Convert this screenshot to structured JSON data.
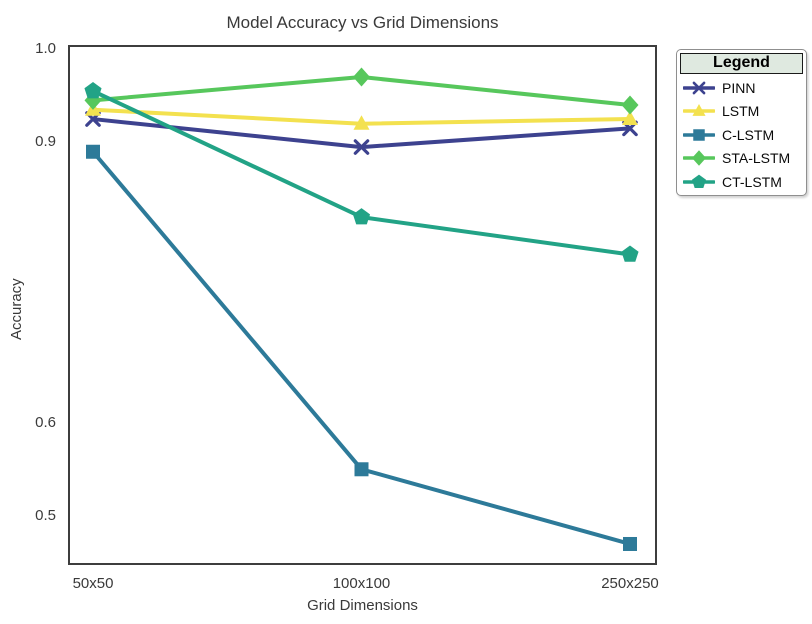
{
  "chart_data": {
    "type": "line",
    "title": "Model Accuracy vs Grid Dimensions",
    "xlabel": "Grid Dimensions",
    "ylabel": "Accuracy",
    "categories": [
      "50x50",
      "100x100",
      "250x250"
    ],
    "series": [
      {
        "name": "PINN",
        "values": [
          0.925,
          0.895,
          0.915
        ],
        "color": "#3d428f",
        "marker": "x"
      },
      {
        "name": "LSTM",
        "values": [
          0.935,
          0.92,
          0.925
        ],
        "color": "#f3e14f",
        "marker": "triangle"
      },
      {
        "name": "C-LSTM",
        "values": [
          0.89,
          0.55,
          0.47
        ],
        "color": "#2d7a99",
        "marker": "square"
      },
      {
        "name": "STA-LSTM",
        "values": [
          0.945,
          0.97,
          0.94
        ],
        "color": "#57c75c",
        "marker": "diamond"
      },
      {
        "name": "CT-LSTM",
        "values": [
          0.955,
          0.82,
          0.78
        ],
        "color": "#22a386",
        "marker": "pentagon"
      }
    ],
    "yticks": [
      1.0,
      0.9,
      0.6,
      0.5
    ],
    "ytick_labels": [
      "1.0",
      "0.9",
      "0.6",
      "0.5"
    ],
    "ylim": [
      0.4475,
      1.0043
    ],
    "grid": false,
    "legend_title": "Legend",
    "legend_position": "outside-right",
    "frame_color": "#3d3d3d",
    "text_color": "#3a3a3a"
  }
}
